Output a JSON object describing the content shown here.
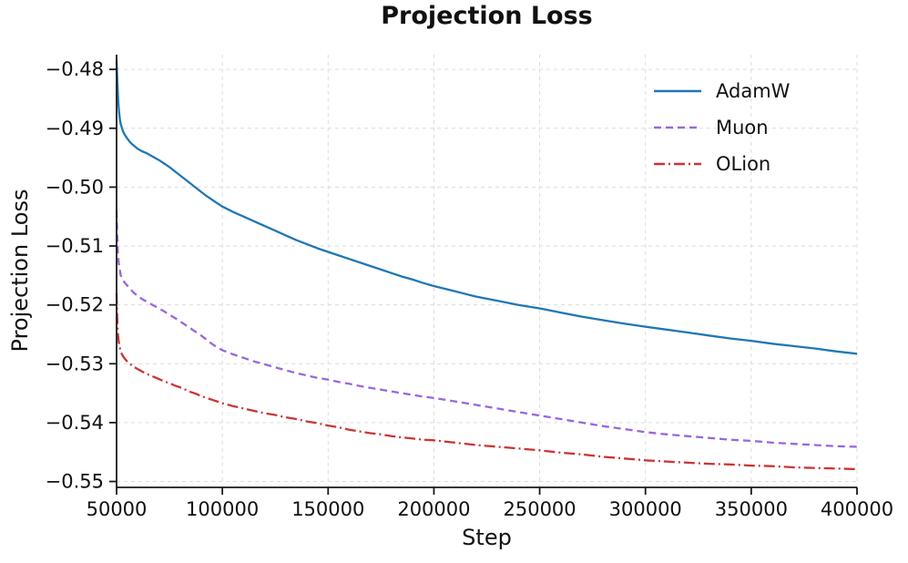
{
  "chart_data": {
    "type": "line",
    "title": "Projection Loss",
    "xlabel": "Step",
    "ylabel": "Projection Loss",
    "xlim": [
      50000,
      400000
    ],
    "ylim": [
      -0.551,
      -0.4775
    ],
    "x_ticks": [
      50000,
      100000,
      150000,
      200000,
      250000,
      300000,
      350000,
      400000
    ],
    "y_ticks": [
      -0.48,
      -0.49,
      -0.5,
      -0.51,
      -0.52,
      -0.53,
      -0.54,
      -0.55
    ],
    "grid": true,
    "grid_color": "#dcdcdc",
    "axis_color": "#1a1a1a",
    "legend_position": "upper right",
    "series": [
      {
        "name": "AdamW",
        "color": "#1f77b4",
        "style": "solid",
        "points": [
          [
            50000,
            -0.4785
          ],
          [
            50400,
            -0.4822
          ],
          [
            50800,
            -0.4856
          ],
          [
            51200,
            -0.4873
          ],
          [
            51600,
            -0.4886
          ],
          [
            52000,
            -0.4893
          ],
          [
            53000,
            -0.4905
          ],
          [
            54000,
            -0.4912
          ],
          [
            55000,
            -0.4917
          ],
          [
            56000,
            -0.4922
          ],
          [
            57000,
            -0.4926
          ],
          [
            58000,
            -0.4929
          ],
          [
            59000,
            -0.4932
          ],
          [
            60000,
            -0.4935
          ],
          [
            62000,
            -0.4939
          ],
          [
            64000,
            -0.4942
          ],
          [
            66000,
            -0.4946
          ],
          [
            68000,
            -0.495
          ],
          [
            70000,
            -0.4954
          ],
          [
            72500,
            -0.496
          ],
          [
            75000,
            -0.4966
          ],
          [
            77500,
            -0.4973
          ],
          [
            80000,
            -0.498
          ],
          [
            82500,
            -0.4987
          ],
          [
            85000,
            -0.4994
          ],
          [
            87500,
            -0.5001
          ],
          [
            90000,
            -0.5008
          ],
          [
            92500,
            -0.5015
          ],
          [
            95000,
            -0.5021
          ],
          [
            97500,
            -0.5027
          ],
          [
            100000,
            -0.5033
          ],
          [
            105000,
            -0.5042
          ],
          [
            110000,
            -0.505
          ],
          [
            115000,
            -0.5058
          ],
          [
            120000,
            -0.5066
          ],
          [
            125000,
            -0.5074
          ],
          [
            130000,
            -0.5082
          ],
          [
            135000,
            -0.509
          ],
          [
            140000,
            -0.5097
          ],
          [
            145000,
            -0.5104
          ],
          [
            150000,
            -0.511
          ],
          [
            155000,
            -0.5116
          ],
          [
            160000,
            -0.5122
          ],
          [
            165000,
            -0.5128
          ],
          [
            170000,
            -0.5134
          ],
          [
            175000,
            -0.514
          ],
          [
            180000,
            -0.5146
          ],
          [
            185000,
            -0.5152
          ],
          [
            190000,
            -0.5157
          ],
          [
            195000,
            -0.5163
          ],
          [
            200000,
            -0.5168
          ],
          [
            210000,
            -0.5177
          ],
          [
            220000,
            -0.5186
          ],
          [
            230000,
            -0.5193
          ],
          [
            240000,
            -0.52
          ],
          [
            250000,
            -0.5206
          ],
          [
            260000,
            -0.5213
          ],
          [
            270000,
            -0.522
          ],
          [
            280000,
            -0.5226
          ],
          [
            290000,
            -0.5232
          ],
          [
            300000,
            -0.5237
          ],
          [
            310000,
            -0.5242
          ],
          [
            320000,
            -0.5247
          ],
          [
            330000,
            -0.5252
          ],
          [
            340000,
            -0.5257
          ],
          [
            350000,
            -0.5261
          ],
          [
            360000,
            -0.5266
          ],
          [
            370000,
            -0.527
          ],
          [
            380000,
            -0.5274
          ],
          [
            390000,
            -0.5279
          ],
          [
            400000,
            -0.5283
          ]
        ]
      },
      {
        "name": "Muon",
        "color": "#9a66dd",
        "style": "dashed",
        "points": [
          [
            50000,
            -0.504
          ],
          [
            50300,
            -0.5082
          ],
          [
            50600,
            -0.5112
          ],
          [
            51000,
            -0.5128
          ],
          [
            51500,
            -0.514
          ],
          [
            52000,
            -0.515
          ],
          [
            53000,
            -0.5158
          ],
          [
            54000,
            -0.5163
          ],
          [
            55000,
            -0.5167
          ],
          [
            56000,
            -0.5171
          ],
          [
            57000,
            -0.5175
          ],
          [
            58000,
            -0.5179
          ],
          [
            59000,
            -0.5182
          ],
          [
            60000,
            -0.5185
          ],
          [
            62000,
            -0.519
          ],
          [
            64000,
            -0.5194
          ],
          [
            66000,
            -0.5198
          ],
          [
            68000,
            -0.5202
          ],
          [
            70000,
            -0.5206
          ],
          [
            72500,
            -0.5211
          ],
          [
            75000,
            -0.5217
          ],
          [
            77500,
            -0.5222
          ],
          [
            80000,
            -0.5228
          ],
          [
            82500,
            -0.5234
          ],
          [
            85000,
            -0.524
          ],
          [
            87500,
            -0.5246
          ],
          [
            90000,
            -0.5252
          ],
          [
            92500,
            -0.5259
          ],
          [
            95000,
            -0.5266
          ],
          [
            97500,
            -0.5272
          ],
          [
            100000,
            -0.5277
          ],
          [
            105000,
            -0.5284
          ],
          [
            110000,
            -0.529
          ],
          [
            115000,
            -0.5296
          ],
          [
            120000,
            -0.5301
          ],
          [
            125000,
            -0.5306
          ],
          [
            130000,
            -0.5311
          ],
          [
            135000,
            -0.5316
          ],
          [
            140000,
            -0.532
          ],
          [
            145000,
            -0.5324
          ],
          [
            150000,
            -0.5327
          ],
          [
            155000,
            -0.5331
          ],
          [
            160000,
            -0.5334
          ],
          [
            165000,
            -0.5338
          ],
          [
            170000,
            -0.5341
          ],
          [
            175000,
            -0.5344
          ],
          [
            180000,
            -0.5347
          ],
          [
            185000,
            -0.535
          ],
          [
            190000,
            -0.5353
          ],
          [
            195000,
            -0.5356
          ],
          [
            200000,
            -0.5358
          ],
          [
            210000,
            -0.5364
          ],
          [
            220000,
            -0.537
          ],
          [
            230000,
            -0.5376
          ],
          [
            240000,
            -0.5382
          ],
          [
            250000,
            -0.5388
          ],
          [
            260000,
            -0.5394
          ],
          [
            270000,
            -0.54
          ],
          [
            280000,
            -0.5406
          ],
          [
            290000,
            -0.5411
          ],
          [
            300000,
            -0.5416
          ],
          [
            310000,
            -0.542
          ],
          [
            320000,
            -0.5423
          ],
          [
            330000,
            -0.5426
          ],
          [
            340000,
            -0.5429
          ],
          [
            350000,
            -0.5431
          ],
          [
            360000,
            -0.5434
          ],
          [
            370000,
            -0.5436
          ],
          [
            380000,
            -0.5438
          ],
          [
            390000,
            -0.544
          ],
          [
            400000,
            -0.5441
          ]
        ]
      },
      {
        "name": "OLion",
        "color": "#cb3434",
        "style": "dashdot",
        "points": [
          [
            50000,
            -0.518
          ],
          [
            50300,
            -0.5222
          ],
          [
            50600,
            -0.5248
          ],
          [
            51000,
            -0.5262
          ],
          [
            51500,
            -0.5272
          ],
          [
            52000,
            -0.528
          ],
          [
            53000,
            -0.5287
          ],
          [
            54000,
            -0.5292
          ],
          [
            55000,
            -0.5296
          ],
          [
            56000,
            -0.5299
          ],
          [
            57000,
            -0.5302
          ],
          [
            58000,
            -0.5305
          ],
          [
            59000,
            -0.5307
          ],
          [
            60000,
            -0.5309
          ],
          [
            62000,
            -0.5313
          ],
          [
            64000,
            -0.5317
          ],
          [
            66000,
            -0.532
          ],
          [
            68000,
            -0.5323
          ],
          [
            70000,
            -0.5326
          ],
          [
            72500,
            -0.533
          ],
          [
            75000,
            -0.5333
          ],
          [
            77500,
            -0.5337
          ],
          [
            80000,
            -0.534
          ],
          [
            82500,
            -0.5344
          ],
          [
            85000,
            -0.5348
          ],
          [
            87500,
            -0.5351
          ],
          [
            90000,
            -0.5355
          ],
          [
            92500,
            -0.5358
          ],
          [
            95000,
            -0.5361
          ],
          [
            97500,
            -0.5364
          ],
          [
            100000,
            -0.5367
          ],
          [
            105000,
            -0.5372
          ],
          [
            110000,
            -0.5376
          ],
          [
            115000,
            -0.538
          ],
          [
            120000,
            -0.5384
          ],
          [
            125000,
            -0.5387
          ],
          [
            130000,
            -0.5391
          ],
          [
            135000,
            -0.5394
          ],
          [
            140000,
            -0.5398
          ],
          [
            145000,
            -0.5401
          ],
          [
            150000,
            -0.5405
          ],
          [
            155000,
            -0.5408
          ],
          [
            160000,
            -0.5412
          ],
          [
            165000,
            -0.5415
          ],
          [
            170000,
            -0.5418
          ],
          [
            175000,
            -0.542
          ],
          [
            180000,
            -0.5423
          ],
          [
            185000,
            -0.5425
          ],
          [
            190000,
            -0.5427
          ],
          [
            195000,
            -0.5429
          ],
          [
            200000,
            -0.543
          ],
          [
            210000,
            -0.5434
          ],
          [
            220000,
            -0.5438
          ],
          [
            230000,
            -0.5441
          ],
          [
            240000,
            -0.5444
          ],
          [
            250000,
            -0.5447
          ],
          [
            260000,
            -0.5451
          ],
          [
            270000,
            -0.5454
          ],
          [
            280000,
            -0.5458
          ],
          [
            290000,
            -0.5461
          ],
          [
            300000,
            -0.5464
          ],
          [
            310000,
            -0.5466
          ],
          [
            320000,
            -0.5468
          ],
          [
            330000,
            -0.547
          ],
          [
            340000,
            -0.5471
          ],
          [
            350000,
            -0.5473
          ],
          [
            360000,
            -0.5474
          ],
          [
            370000,
            -0.5476
          ],
          [
            380000,
            -0.5477
          ],
          [
            390000,
            -0.5478
          ],
          [
            400000,
            -0.5479
          ]
        ]
      }
    ]
  }
}
